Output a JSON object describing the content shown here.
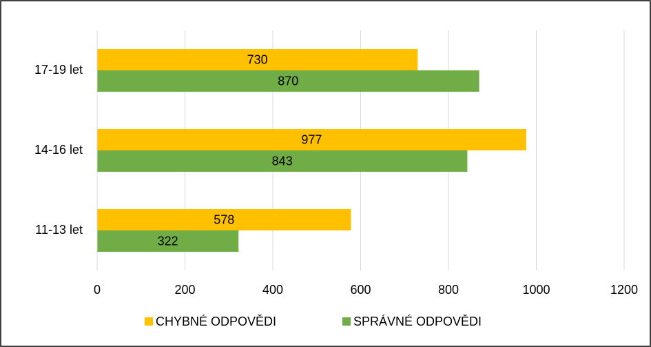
{
  "chart_data": {
    "type": "bar",
    "orientation": "horizontal",
    "categories": [
      "11-13 let",
      "14-16 let",
      "17-19 let"
    ],
    "series": [
      {
        "name": "CHYBNÉ ODPOVĚDI",
        "color": "#ffc000",
        "values": [
          578,
          977,
          730
        ]
      },
      {
        "name": "SPRÁVNÉ ODPOVĚDI",
        "color": "#70ad47",
        "values": [
          322,
          843,
          870
        ]
      }
    ],
    "xlim": [
      0,
      1200
    ],
    "xticks": [
      0,
      200,
      400,
      600,
      800,
      1000,
      1200
    ],
    "grid": true,
    "legend": "bottom"
  }
}
